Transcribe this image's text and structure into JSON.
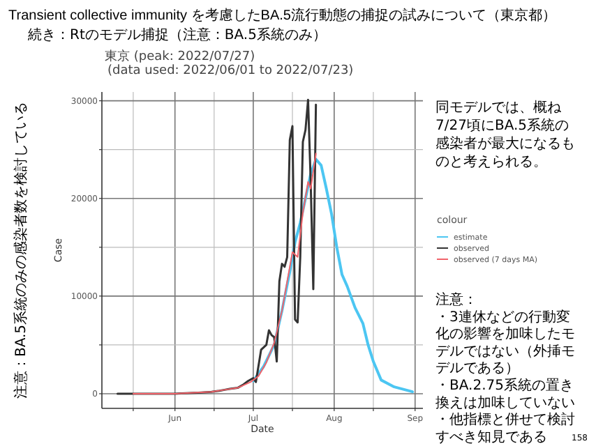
{
  "chart_data": {
    "type": "line",
    "title": "Transient collective immunity を考慮したBA.5流行動態の捕捉の試みについて（東京都）",
    "subtitle": "続き：Rtのモデル捕捉（注意：BA.5系統のみ）",
    "xlabel": "Date",
    "ylabel": "Case",
    "legend_title": "colour",
    "annotations": [
      "東京 (peak: 2022/07/27)",
      "(data used: 2022/06/01 to 2022/07/23)",
      "注意：BA.5系統のみの感染者数を検討している",
      "同モデルでは、概ね",
      "7/27頃にBA.5系統の",
      "感染者が最大になるも",
      "のと考えられる。",
      "注意：",
      "・3連休などの行動変",
      "化の影響を加味したモ",
      "デルではない（外挿モ",
      "デルである）",
      "・BA.2.75系統の置き",
      "換えは加味していない",
      "・他指標と併せて検討",
      "すべき知見である",
      "158"
    ],
    "series": [
      {
        "name": "estimate",
        "color": "#4cc6f2",
        "x": [
          "2022-07-01",
          "2022-07-05",
          "2022-07-09",
          "2022-07-12",
          "2022-07-15",
          "2022-07-17",
          "2022-07-19",
          "2022-07-21",
          "2022-07-23",
          "2022-07-25",
          "2022-07-27",
          "2022-07-29",
          "2022-07-31",
          "2022-08-02",
          "2022-08-04",
          "2022-08-06",
          "2022-08-09",
          "2022-08-12",
          "2022-08-14",
          "2022-08-16",
          "2022-08-19",
          "2022-08-24",
          "2022-08-31"
        ],
        "values": [
          1300,
          2800,
          5000,
          8500,
          12500,
          15500,
          17500,
          20000,
          22500,
          24000,
          23400,
          21000,
          18400,
          15000,
          12200,
          11000,
          8800,
          7200,
          5000,
          3300,
          1400,
          700,
          200
        ]
      },
      {
        "name": "observed",
        "color": "#333333",
        "x": [
          "2022-05-10",
          "2022-05-20",
          "2022-06-01",
          "2022-06-10",
          "2022-06-15",
          "2022-06-18",
          "2022-06-20",
          "2022-06-22",
          "2022-06-25",
          "2022-06-27",
          "2022-06-29",
          "2022-07-01",
          "2022-07-02",
          "2022-07-04",
          "2022-07-06",
          "2022-07-07",
          "2022-07-08",
          "2022-07-09",
          "2022-07-10",
          "2022-07-11",
          "2022-07-12",
          "2022-07-13",
          "2022-07-14",
          "2022-07-15",
          "2022-07-16",
          "2022-07-17",
          "2022-07-18",
          "2022-07-19",
          "2022-07-20",
          "2022-07-21",
          "2022-07-22",
          "2022-07-23",
          "2022-07-24",
          "2022-07-25"
        ],
        "values": [
          0,
          0,
          0,
          100,
          200,
          300,
          400,
          500,
          600,
          900,
          1300,
          1600,
          1200,
          4500,
          5000,
          6500,
          6000,
          5800,
          3300,
          11500,
          13300,
          13000,
          14000,
          26000,
          27400,
          7600,
          7300,
          14000,
          25800,
          27000,
          30100,
          21700,
          10700,
          29600
        ]
      },
      {
        "name": "observed (7 days MA)",
        "color": "#f0636a",
        "x": [
          "2022-05-16",
          "2022-06-01",
          "2022-06-15",
          "2022-06-20",
          "2022-06-25",
          "2022-06-30",
          "2022-07-03",
          "2022-07-06",
          "2022-07-09",
          "2022-07-12",
          "2022-07-14",
          "2022-07-16",
          "2022-07-18",
          "2022-07-20",
          "2022-07-22",
          "2022-07-23",
          "2022-07-25"
        ],
        "values": [
          0,
          0,
          200,
          400,
          600,
          1200,
          1800,
          3200,
          5200,
          8500,
          11500,
          14500,
          14000,
          18500,
          21700,
          21000,
          24600
        ]
      }
    ],
    "xlim": [
      "2022-05-04",
      "2022-09-04"
    ],
    "xticks": [
      {
        "value": "2022-05-16",
        "label": null
      },
      {
        "value": "2022-06-01",
        "label": "Jun"
      },
      {
        "value": "2022-06-16",
        "label": null
      },
      {
        "value": "2022-07-01",
        "label": "Jul"
      },
      {
        "value": "2022-07-16",
        "label": null
      },
      {
        "value": "2022-08-01",
        "label": "Aug"
      },
      {
        "value": "2022-08-16",
        "label": null
      },
      {
        "value": "2022-09-01",
        "label": "Sep"
      }
    ],
    "ylim": [
      -1500,
      30900
    ],
    "yticks": [
      0,
      {
        "value": 5000,
        "label": null
      },
      10000,
      {
        "value": 15000,
        "label": null
      },
      20000,
      {
        "value": 25000,
        "label": null
      },
      30000
    ],
    "grid": true,
    "legend": "right",
    "marker": "none",
    "line_style": "solid"
  }
}
